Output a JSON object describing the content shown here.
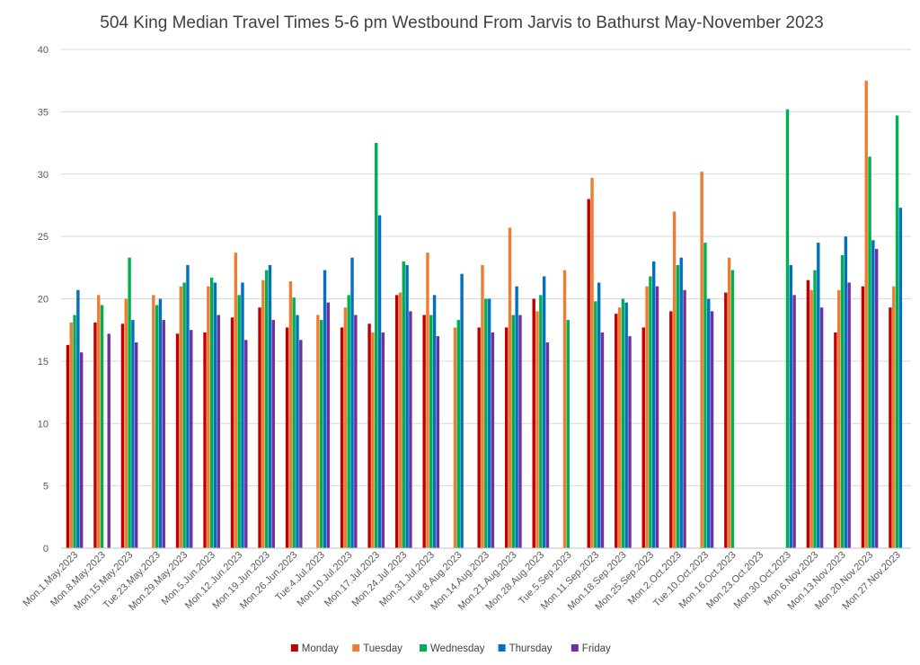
{
  "chart_data": {
    "type": "bar",
    "title": "504 King Median Travel Times 5-6 pm Westbound From Jarvis to Bathurst May-November 2023",
    "xlabel": "",
    "ylabel": "",
    "ylim": [
      0,
      40
    ],
    "yticks": [
      0,
      5,
      10,
      15,
      20,
      25,
      30,
      35,
      40
    ],
    "grid": true,
    "legend_position": "bottom",
    "categories": [
      "Mon.1.May.2023",
      "Mon.8.May.2023",
      "Mon.15.May.2023",
      "Tue.23.May.2023",
      "Mon.29.May.2023",
      "Mon.5.Jun.2023",
      "Mon.12.Jun.2023",
      "Mon.19.Jun.2023",
      "Mon.26.Jun.2023",
      "Tue.4.Jul.2023",
      "Mon.10.Jul.2023",
      "Mon.17.Jul.2023",
      "Mon.24.Jul.2023",
      "Mon.31.Jul.2023",
      "Tue.8.Aug.2023",
      "Mon.14.Aug.2023",
      "Mon.21.Aug.2023",
      "Mon.28.Aug.2023",
      "Tue.5.Sep.2023",
      "Mon.11.Sep.2023",
      "Mon.18.Sep.2023",
      "Mon.25.Sep.2023",
      "Mon.2.Oct.2023",
      "Tue.10.Oct.2023",
      "Mon.16.Oct.2023",
      "Mon.23.Oct.2023",
      "Mon.30.Oct.2023",
      "Mon.6.Nov.2023",
      "Mon.13.Nov.2023",
      "Mon.20.Nov.2023",
      "Mon.27.Nov.2023"
    ],
    "series": [
      {
        "name": "Monday",
        "color": "#c00000",
        "values": [
          16.3,
          18.1,
          18.0,
          null,
          17.2,
          17.3,
          18.5,
          19.3,
          17.7,
          null,
          17.7,
          18.0,
          20.3,
          18.7,
          null,
          17.7,
          17.7,
          20.0,
          null,
          28.0,
          18.8,
          17.7,
          19.0,
          null,
          20.5,
          null,
          null,
          21.5,
          17.3,
          21.0,
          19.3
        ]
      },
      {
        "name": "Tuesday",
        "color": "#ed7d31",
        "values": [
          18.1,
          20.3,
          20.0,
          20.3,
          21.0,
          21.0,
          23.7,
          21.5,
          21.4,
          18.7,
          19.3,
          17.3,
          20.5,
          23.7,
          17.7,
          22.7,
          25.7,
          19.0,
          22.3,
          29.7,
          19.3,
          21.0,
          27.0,
          30.2,
          23.3,
          null,
          null,
          20.7,
          20.7,
          37.5,
          21.0
        ]
      },
      {
        "name": "Wednesday",
        "color": "#00b050",
        "values": [
          18.7,
          19.5,
          23.3,
          19.5,
          21.3,
          21.7,
          20.3,
          22.3,
          20.1,
          18.3,
          20.3,
          32.5,
          23.0,
          18.7,
          18.3,
          20.0,
          18.7,
          20.3,
          18.3,
          19.8,
          20.0,
          21.8,
          22.7,
          24.5,
          22.3,
          null,
          35.2,
          22.3,
          23.5,
          31.4,
          34.7
        ]
      },
      {
        "name": "Thursday",
        "color": "#0070c0",
        "values": [
          20.7,
          null,
          18.3,
          20.0,
          22.7,
          21.3,
          21.3,
          22.7,
          18.7,
          22.3,
          23.3,
          26.7,
          22.7,
          20.3,
          22.0,
          20.0,
          21.0,
          21.8,
          null,
          21.3,
          19.7,
          23.0,
          23.3,
          20.0,
          null,
          null,
          22.7,
          24.5,
          25.0,
          24.7,
          27.3
        ]
      },
      {
        "name": "Friday",
        "color": "#7030a0",
        "values": [
          15.7,
          17.2,
          16.5,
          18.3,
          17.5,
          18.7,
          16.7,
          18.3,
          16.7,
          19.7,
          18.7,
          17.3,
          19.0,
          17.0,
          null,
          17.3,
          18.7,
          16.5,
          null,
          17.3,
          17.0,
          21.0,
          20.7,
          19.0,
          null,
          null,
          20.3,
          19.3,
          21.3,
          24.0,
          null
        ]
      }
    ]
  }
}
